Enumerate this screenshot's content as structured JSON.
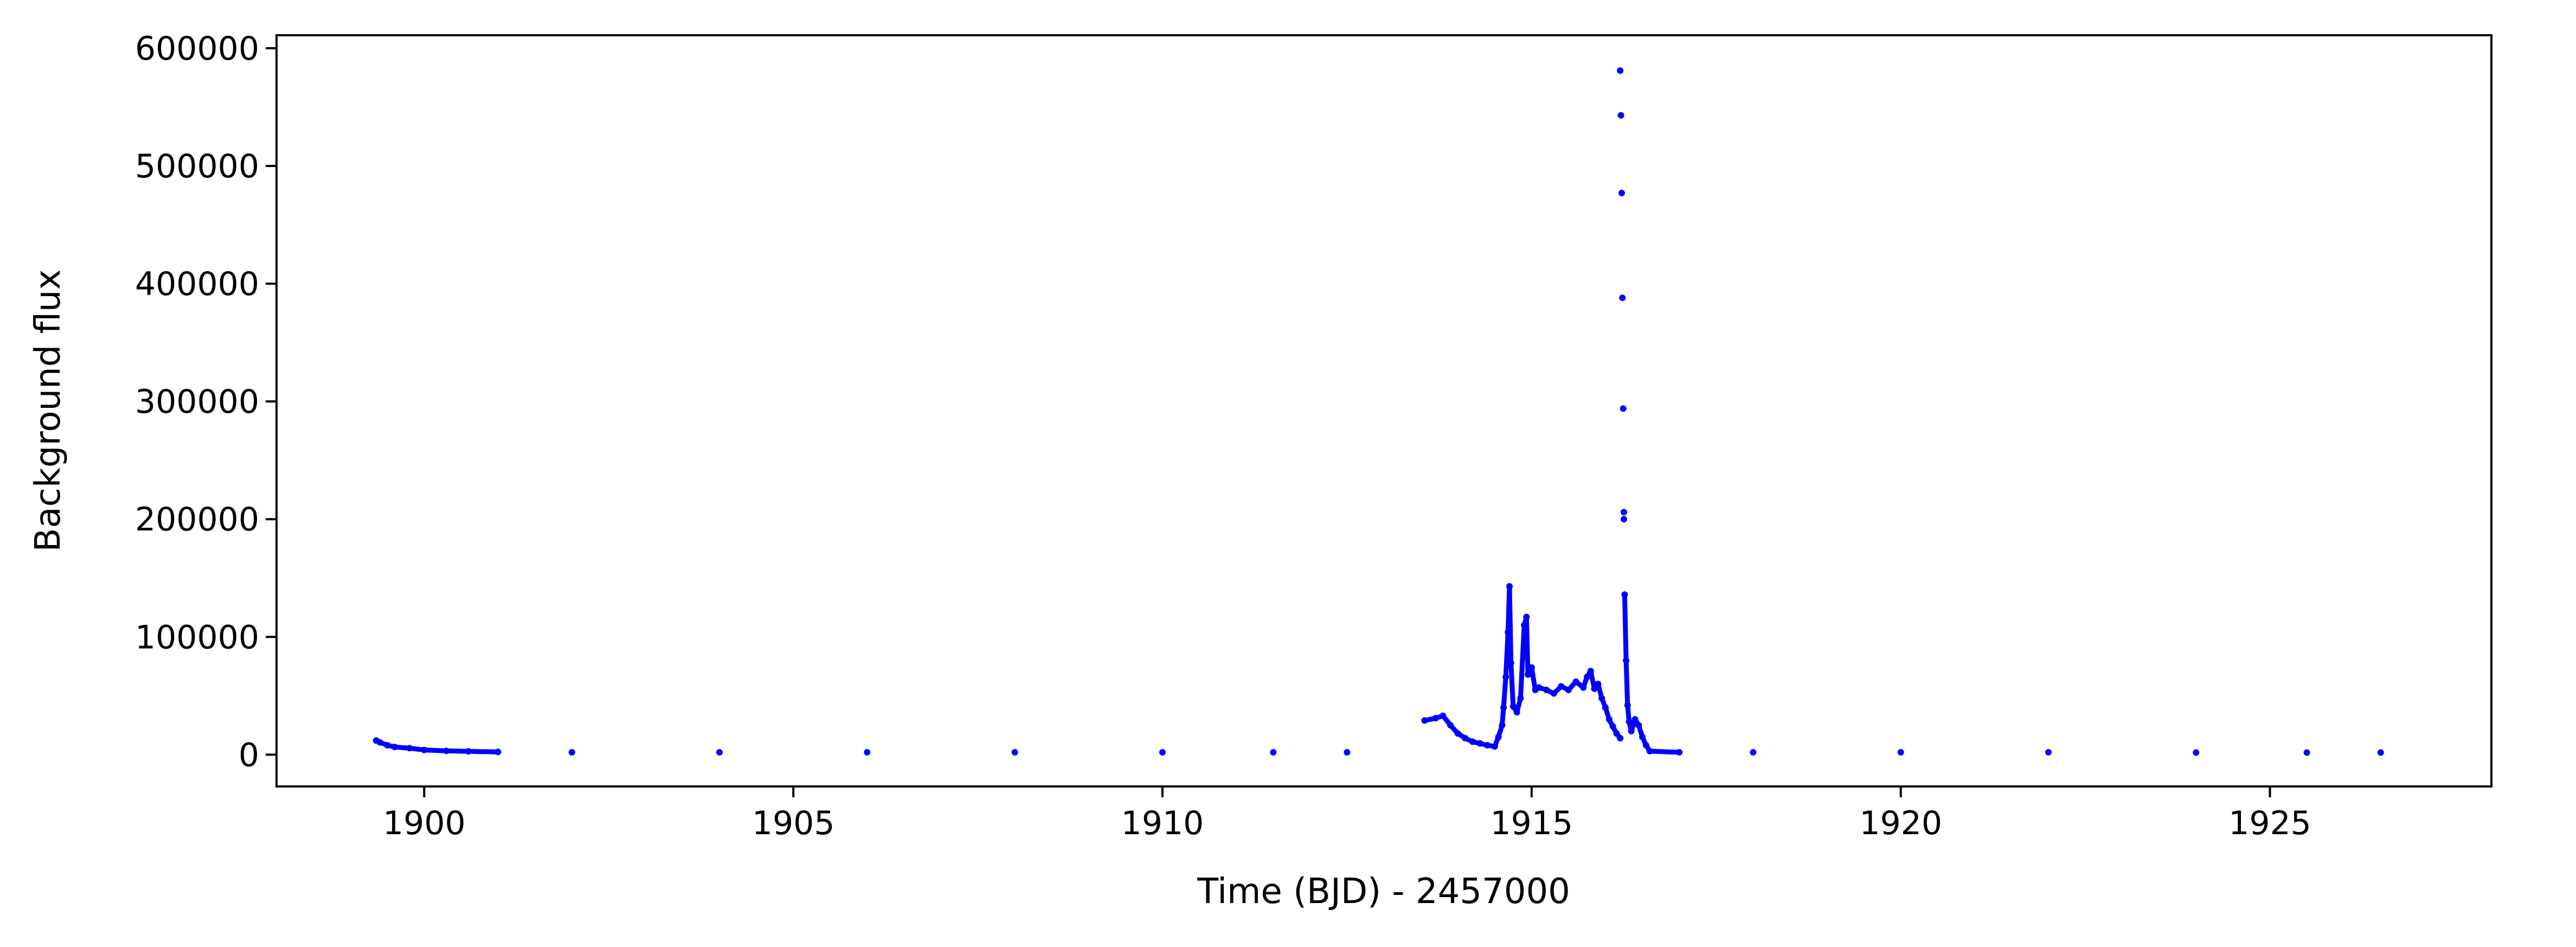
{
  "chart_data": {
    "type": "scatter",
    "title": "",
    "xlabel": "Time (BJD) - 2457000",
    "ylabel": "Background flux",
    "xlim": [
      1898,
      1928
    ],
    "ylim": [
      -27000,
      611000
    ],
    "x_ticks": [
      1900,
      1905,
      1910,
      1915,
      1920,
      1925
    ],
    "x_tick_labels": [
      "1900",
      "1905",
      "1910",
      "1915",
      "1920",
      "1925"
    ],
    "y_ticks": [
      0,
      100000,
      200000,
      300000,
      400000,
      500000,
      600000
    ],
    "y_tick_labels": [
      "0",
      "100000",
      "200000",
      "300000",
      "400000",
      "500000",
      "600000"
    ],
    "grid": false,
    "legend": "none",
    "series": [
      {
        "color": "#0000ff",
        "x": [
          1899.35,
          1899.4,
          1899.5,
          1899.6,
          1899.8,
          1900.0,
          1900.3,
          1900.6,
          1901.0,
          1902.0,
          1904.0,
          1906.0,
          1908.0,
          1910.0,
          1911.5,
          1912.5,
          1913.55,
          1913.7,
          1913.8,
          1913.9,
          1914.0,
          1914.1,
          1914.2,
          1914.3,
          1914.4,
          1914.5,
          1914.55,
          1914.6,
          1914.62,
          1914.65,
          1914.68,
          1914.7,
          1914.72,
          1914.75,
          1914.8,
          1914.85,
          1914.9,
          1914.93,
          1914.95,
          1915.0,
          1915.05,
          1915.1,
          1915.2,
          1915.3,
          1915.4,
          1915.5,
          1915.6,
          1915.7,
          1915.75,
          1915.8,
          1915.85,
          1915.9,
          1915.95,
          1916.0,
          1916.05,
          1916.1,
          1916.15,
          1916.2,
          1916.2,
          1916.21,
          1916.22,
          1916.23,
          1916.24,
          1916.25,
          1916.25,
          1916.26,
          1916.28,
          1916.3,
          1916.32,
          1916.35,
          1916.4,
          1916.45,
          1916.5,
          1916.55,
          1916.6,
          1917.0,
          1918.0,
          1920.0,
          1922.0,
          1924.0,
          1925.5,
          1926.5
        ],
        "y": [
          12000,
          10500,
          8000,
          6500,
          5500,
          4000,
          3200,
          2800,
          2300,
          2000,
          2000,
          2000,
          2000,
          2000,
          2000,
          2000,
          29000,
          31000,
          33000,
          25000,
          18000,
          14000,
          11000,
          9500,
          8000,
          7000,
          15000,
          25000,
          40000,
          66000,
          104000,
          143000,
          78000,
          41000,
          36000,
          48000,
          110000,
          117000,
          68000,
          74000,
          55000,
          57000,
          55000,
          52000,
          58000,
          55000,
          62000,
          57000,
          66000,
          71000,
          56000,
          60000,
          48000,
          40000,
          30000,
          24000,
          18000,
          14000,
          581000,
          543000,
          477000,
          388000,
          294000,
          206000,
          200000,
          136000,
          80000,
          42000,
          28000,
          20000,
          30000,
          25000,
          15000,
          8000,
          3000,
          2000,
          2000,
          2000,
          2000,
          1800,
          1800,
          1800
        ]
      }
    ]
  }
}
